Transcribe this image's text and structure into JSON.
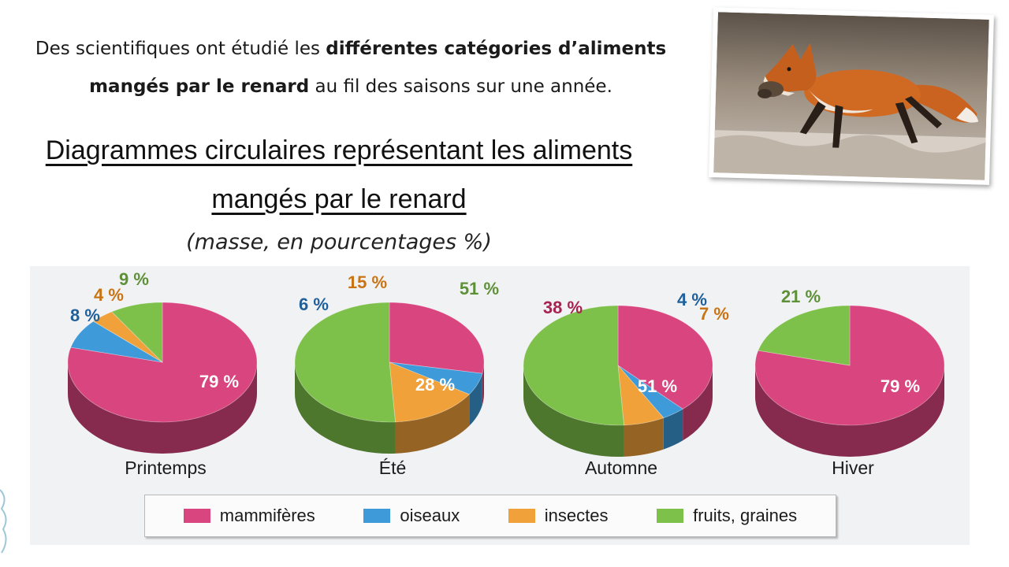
{
  "intro": {
    "part1": "Des scientifiques ont étudié les ",
    "bold1": "différentes catégories d’aliments mangés par le renard",
    "part2": " au fil des saisons sur une année."
  },
  "title": "Diagrammes circulaires représentant les aliments mangés par le renard",
  "subtitle": "(masse, en pourcentages %)",
  "colors": {
    "mammiferes": "#d9457e",
    "oiseaux": "#3e9ad8",
    "insectes": "#f0a13a",
    "fruits": "#7dc04a"
  },
  "legend": [
    {
      "key": "mammiferes",
      "label": "mammifères"
    },
    {
      "key": "oiseaux",
      "label": "oiseaux"
    },
    {
      "key": "insectes",
      "label": "insectes"
    },
    {
      "key": "fruits",
      "label": "fruits, graines"
    }
  ],
  "chart_data": [
    {
      "type": "pie",
      "title": "Printemps",
      "slices": [
        {
          "key": "mammiferes",
          "label": "mammifères",
          "value": 79,
          "text": "79 %"
        },
        {
          "key": "oiseaux",
          "label": "oiseaux",
          "value": 8,
          "text": "8 %"
        },
        {
          "key": "insectes",
          "label": "insectes",
          "value": 4,
          "text": "4 %"
        },
        {
          "key": "fruits",
          "label": "fruits, graines",
          "value": 9,
          "text": "9 %"
        }
      ]
    },
    {
      "type": "pie",
      "title": "Été",
      "slices": [
        {
          "key": "mammiferes",
          "label": "mammifères",
          "value": 28,
          "text": "28 %"
        },
        {
          "key": "oiseaux",
          "label": "oiseaux",
          "value": 6,
          "text": "6 %"
        },
        {
          "key": "insectes",
          "label": "insectes",
          "value": 15,
          "text": "15 %"
        },
        {
          "key": "fruits",
          "label": "fruits, graines",
          "value": 51,
          "text": "51 %"
        }
      ]
    },
    {
      "type": "pie",
      "title": "Automne",
      "slices": [
        {
          "key": "mammiferes",
          "label": "mammifères",
          "value": 38,
          "text": "38 %"
        },
        {
          "key": "oiseaux",
          "label": "oiseaux",
          "value": 4,
          "text": "4 %"
        },
        {
          "key": "insectes",
          "label": "insectes",
          "value": 7,
          "text": "7 %"
        },
        {
          "key": "fruits",
          "label": "fruits, graines",
          "value": 51,
          "text": "51 %"
        }
      ]
    },
    {
      "type": "pie",
      "title": "Hiver",
      "slices": [
        {
          "key": "mammiferes",
          "label": "mammifères",
          "value": 79,
          "text": "79 %"
        },
        {
          "key": "fruits",
          "label": "fruits, graines",
          "value": 21,
          "text": "21 %"
        }
      ]
    }
  ]
}
